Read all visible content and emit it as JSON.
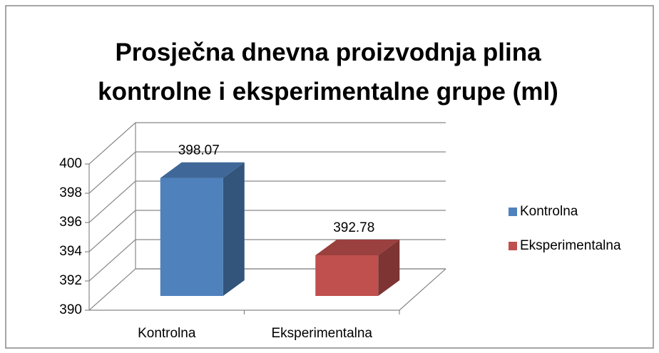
{
  "chart_data": {
    "type": "bar3d",
    "title": "Prosječna dnevna proizvodnja plina kontrolne i eksperimentalne grupe (ml)",
    "categories": [
      "Kontrolna",
      "Eksperimentalna"
    ],
    "series": [
      {
        "name": "Kontrolna",
        "color": "#4f81bd",
        "values": [
          398.07,
          null
        ]
      },
      {
        "name": "Eksperimentalna",
        "color": "#c0504d",
        "values": [
          null,
          392.78
        ]
      }
    ],
    "ylim": [
      390,
      400
    ],
    "yticks": [
      390,
      392,
      394,
      396,
      398,
      400
    ],
    "grid": true,
    "legend": "right"
  }
}
